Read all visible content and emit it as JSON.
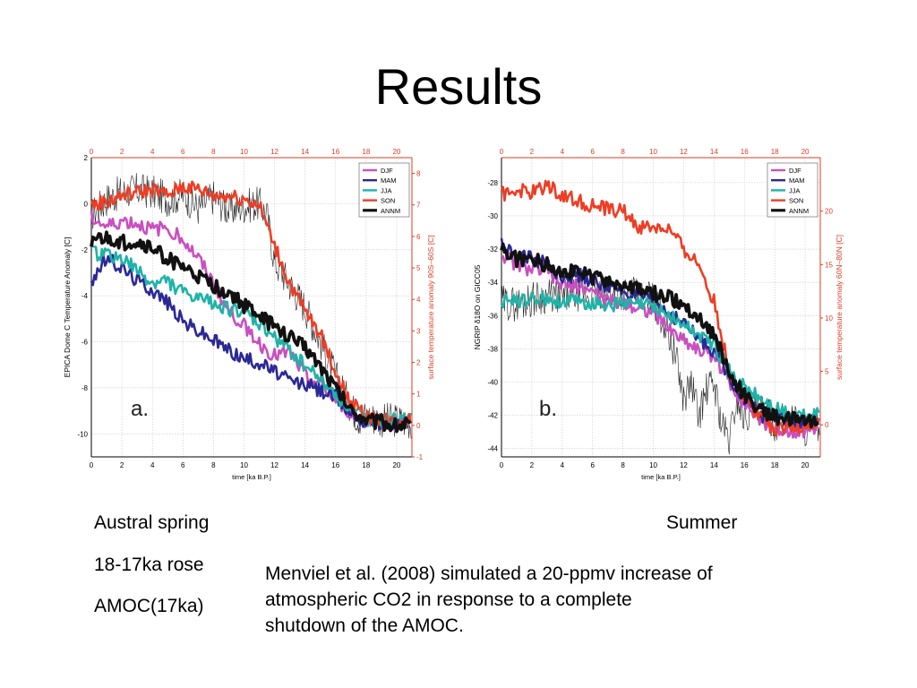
{
  "slide": {
    "title": "Results",
    "left_notes": [
      "Austral spring",
      "18-17ka rose",
      "AMOC(17ka)"
    ],
    "right_note": "Summer",
    "body_text": "Menviel et al. (2008) simulated a 20-ppmv increase of atmospheric CO2 in response to a complete shutdown of the AMOC."
  },
  "colors": {
    "DJF": "#c94fc0",
    "MAM": "#2b2896",
    "JJA": "#1fb3a8",
    "SON": "#ee3d24",
    "ANNM": "#111111",
    "proxy": "#222222",
    "right_axis": "#e23b22",
    "grid": "#c8c8c8"
  },
  "chart_data": [
    {
      "panel_label": "a.",
      "type": "line",
      "xlabel": "time [ka B.P.]",
      "xlim": [
        0,
        21
      ],
      "x_ticks": [
        0,
        2,
        4,
        6,
        8,
        10,
        12,
        14,
        16,
        18,
        20
      ],
      "ylabel_left": "EPICA Dome C Temperature Anomaly [C]",
      "ylim_left": [
        -11,
        2
      ],
      "y_ticks_left": [
        2,
        0,
        -2,
        -4,
        -6,
        -8,
        -10
      ],
      "ylabel_right": "surface temperature anomaly 90S–60S [C]",
      "ylim_right": [
        -1,
        8.5
      ],
      "y_ticks_right": [
        8,
        7,
        6,
        5,
        4,
        3,
        2,
        1,
        0,
        -1
      ],
      "legend_placement": "top-right",
      "grid": true,
      "proxy_series": {
        "axis": "left",
        "x": [
          0,
          1,
          2,
          3,
          4,
          5,
          6,
          7,
          8,
          9,
          10,
          11,
          11.5,
          12,
          13,
          14,
          15,
          16,
          17,
          17.5,
          18,
          19,
          20,
          21
        ],
        "values": [
          -0.5,
          0.2,
          0.5,
          0.6,
          0.5,
          0.2,
          0.4,
          -0.2,
          0.3,
          -0.3,
          -0.1,
          0,
          -0.5,
          -2.5,
          -3.5,
          -4.5,
          -6,
          -7.5,
          -8.8,
          -9.3,
          -9.2,
          -9.4,
          -9.4,
          -9.5
        ]
      },
      "series": [
        {
          "name": "DJF",
          "axis": "right",
          "x": [
            0,
            1,
            2,
            3,
            4,
            5,
            6,
            7,
            8,
            9,
            10,
            11,
            12,
            13,
            14,
            15,
            16,
            17,
            18,
            19,
            20,
            21
          ],
          "values": [
            6.6,
            6.3,
            6.5,
            6.4,
            6.2,
            6.3,
            5.9,
            5.3,
            4.5,
            3.6,
            3.2,
            2.6,
            2.2,
            2.3,
            1.6,
            1.3,
            0.8,
            0.4,
            0.1,
            0.1,
            0,
            0.2
          ]
        },
        {
          "name": "MAM",
          "axis": "right",
          "x": [
            0,
            1,
            2,
            3,
            4,
            5,
            6,
            7,
            8,
            9,
            10,
            11,
            12,
            13,
            14,
            15,
            16,
            17,
            18,
            19,
            20,
            21
          ],
          "values": [
            4.6,
            5.3,
            5,
            4.6,
            4.3,
            3.9,
            3.3,
            3,
            2.7,
            2.4,
            2.1,
            2,
            1.7,
            1.4,
            1.3,
            1.1,
            0.9,
            0.4,
            0.1,
            0.1,
            0,
            0.1
          ]
        },
        {
          "name": "JJA",
          "axis": "right",
          "x": [
            0,
            1,
            2,
            3,
            4,
            5,
            6,
            7,
            8,
            9,
            10,
            11,
            12,
            13,
            14,
            15,
            16,
            17,
            18,
            19,
            20,
            21
          ],
          "values": [
            5.5,
            5.4,
            5.3,
            4.9,
            4.5,
            4.6,
            4.2,
            4,
            3.9,
            3.7,
            3.6,
            3.2,
            2.8,
            2.4,
            1.9,
            1.5,
            1,
            0.5,
            0.2,
            0.2,
            0.1,
            0.2
          ]
        },
        {
          "name": "SON",
          "axis": "right",
          "x": [
            0,
            1,
            2,
            3,
            4,
            5,
            6,
            7,
            8,
            9,
            10,
            11,
            12,
            13,
            14,
            15,
            16,
            17,
            18,
            19,
            20,
            21
          ],
          "values": [
            7,
            7.1,
            7.3,
            7.4,
            7.5,
            7.3,
            7.6,
            7.5,
            7.3,
            7.3,
            7.2,
            7,
            5.7,
            4.5,
            3.6,
            2.9,
            1.7,
            0.7,
            0.3,
            0.2,
            0.1,
            0.2
          ]
        },
        {
          "name": "ANNM",
          "axis": "right",
          "x": [
            0,
            1,
            2,
            3,
            4,
            5,
            6,
            7,
            8,
            9,
            10,
            11,
            12,
            13,
            14,
            15,
            16,
            17,
            18,
            19,
            20,
            21
          ],
          "values": [
            5.9,
            5.9,
            5.8,
            5.8,
            5.6,
            5.3,
            5,
            4.7,
            4.4,
            4.2,
            3.8,
            3.5,
            3.1,
            2.8,
            2.5,
            1.9,
            1.2,
            0.5,
            0.2,
            0.1,
            0,
            0.1
          ]
        }
      ]
    },
    {
      "panel_label": "b.",
      "type": "line",
      "xlabel": "time [ka B.P.]",
      "xlim": [
        0,
        21
      ],
      "x_ticks": [
        0,
        2,
        4,
        6,
        8,
        10,
        12,
        14,
        16,
        18,
        20
      ],
      "ylabel_left": "NGRIP δ18O on GICC05",
      "ylim_left": [
        -44.5,
        -26.5
      ],
      "y_ticks_left": [
        -28,
        -30,
        -32,
        -34,
        -36,
        -38,
        -40,
        -42,
        -44
      ],
      "ylabel_right": "surface temperature anomaly 60N–80N [C]",
      "ylim_right": [
        -3,
        25
      ],
      "y_ticks_right": [
        20,
        15,
        10,
        5,
        0
      ],
      "legend_placement": "top-right",
      "grid": true,
      "proxy_series": {
        "axis": "left",
        "x": [
          0,
          1,
          2,
          3,
          4,
          5,
          6,
          7,
          8,
          9,
          10,
          11,
          11.5,
          12,
          12.5,
          13,
          13.5,
          14,
          14.5,
          15,
          15.5,
          16,
          17,
          18,
          19,
          20,
          21
        ],
        "values": [
          -35.2,
          -35.3,
          -35,
          -34.8,
          -34.9,
          -34.7,
          -34.8,
          -34.7,
          -34.6,
          -34.8,
          -35,
          -37,
          -38.5,
          -41,
          -40,
          -42,
          -40.5,
          -40,
          -42.5,
          -43.5,
          -41,
          -42,
          -41.5,
          -42.5,
          -42,
          -42.8,
          -42.5
        ]
      },
      "series": [
        {
          "name": "DJF",
          "axis": "right",
          "x": [
            0,
            1,
            2,
            3,
            4,
            5,
            6,
            7,
            8,
            9,
            10,
            11,
            12,
            13,
            14,
            15,
            16,
            17,
            18,
            19,
            20,
            21
          ],
          "values": [
            16,
            15,
            14.5,
            14.5,
            13,
            13,
            12.5,
            11.5,
            11.5,
            11,
            10.5,
            9,
            8,
            7,
            6.5,
            4,
            2,
            0.5,
            -0.5,
            -0.5,
            -0.5,
            0
          ]
        },
        {
          "name": "MAM",
          "axis": "right",
          "x": [
            0,
            1,
            2,
            3,
            4,
            5,
            6,
            7,
            8,
            9,
            10,
            11,
            12,
            13,
            14,
            15,
            16,
            17,
            18,
            19,
            20,
            21
          ],
          "values": [
            17,
            16,
            15.5,
            15,
            14,
            14,
            13.5,
            13,
            12.5,
            12,
            11.5,
            10.5,
            9.5,
            8,
            7,
            4.5,
            2.5,
            1,
            0.5,
            0.5,
            0,
            0.5
          ]
        },
        {
          "name": "JJA",
          "axis": "right",
          "x": [
            0,
            1,
            2,
            3,
            4,
            5,
            6,
            7,
            8,
            9,
            10,
            11,
            12,
            13,
            14,
            15,
            16,
            17,
            18,
            19,
            20,
            21
          ],
          "values": [
            11.5,
            11.6,
            11.8,
            11.7,
            11.6,
            11.5,
            11.4,
            11.3,
            11.3,
            11.3,
            11.2,
            10.3,
            9.3,
            8.5,
            7.5,
            5,
            3.5,
            2.5,
            1.5,
            1,
            0.8,
            1
          ]
        },
        {
          "name": "SON",
          "axis": "right",
          "x": [
            0,
            1,
            2,
            3,
            4,
            5,
            6,
            7,
            8,
            9,
            10,
            11,
            12,
            13,
            14,
            15,
            16,
            17,
            18,
            19,
            20,
            21
          ],
          "values": [
            21.5,
            22,
            21.7,
            22.5,
            21.5,
            21,
            20.5,
            20.2,
            20,
            18.5,
            18.5,
            18.3,
            16.5,
            15,
            11.5,
            5,
            2.5,
            1,
            -0.5,
            -0.5,
            0,
            0
          ]
        },
        {
          "name": "ANNM",
          "axis": "right",
          "x": [
            0,
            1,
            2,
            3,
            4,
            5,
            6,
            7,
            8,
            9,
            10,
            11,
            12,
            13,
            14,
            15,
            16,
            17,
            18,
            19,
            20,
            21
          ],
          "values": [
            16.5,
            15.5,
            15.5,
            15,
            14.5,
            14.3,
            13.8,
            13.5,
            13,
            12.6,
            12.3,
            11.9,
            11.2,
            10,
            8.5,
            4.8,
            2.8,
            1.5,
            0.8,
            0.5,
            0.3,
            0.5
          ]
        }
      ]
    }
  ]
}
